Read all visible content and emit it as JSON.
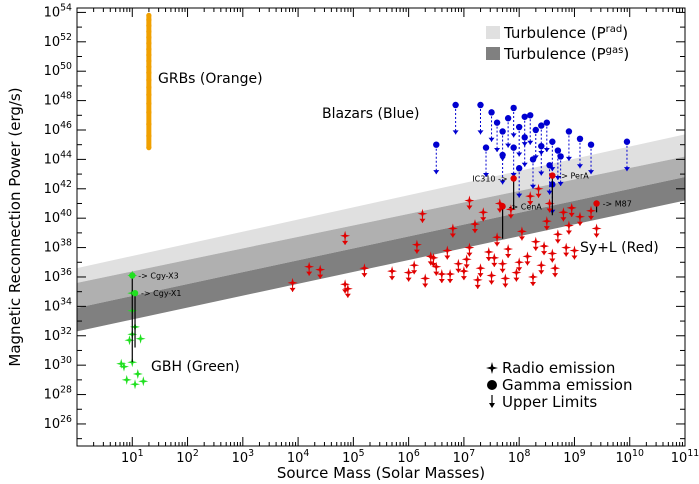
{
  "chart_data": {
    "type": "scatter",
    "xlabel": "Source Mass (Solar Masses)",
    "ylabel": "Magnetic Reconnection Power (erg/s)",
    "x_scale": "log",
    "y_scale": "log",
    "xlim_exp": [
      0,
      11
    ],
    "ylim_exp": [
      24.5,
      54.3
    ],
    "x_ticks": [
      {
        "base": "10",
        "exp": "1",
        "e": 1
      },
      {
        "base": "10",
        "exp": "2",
        "e": 2
      },
      {
        "base": "10",
        "exp": "3",
        "e": 3
      },
      {
        "base": "10",
        "exp": "4",
        "e": 4
      },
      {
        "base": "10",
        "exp": "5",
        "e": 5
      },
      {
        "base": "10",
        "exp": "6",
        "e": 6
      },
      {
        "base": "10",
        "exp": "7",
        "e": 7
      },
      {
        "base": "10",
        "exp": "8",
        "e": 8
      },
      {
        "base": "10",
        "exp": "9",
        "e": 9
      },
      {
        "base": "10",
        "exp": "10",
        "e": 10
      },
      {
        "base": "10",
        "exp": "11",
        "e": 11
      }
    ],
    "y_ticks": [
      {
        "base": "10",
        "exp": "26",
        "e": 26
      },
      {
        "base": "10",
        "exp": "28",
        "e": 28
      },
      {
        "base": "10",
        "exp": "30",
        "e": 30
      },
      {
        "base": "10",
        "exp": "32",
        "e": 32
      },
      {
        "base": "10",
        "exp": "34",
        "e": 34
      },
      {
        "base": "10",
        "exp": "36",
        "e": 36
      },
      {
        "base": "10",
        "exp": "38",
        "e": 38
      },
      {
        "base": "10",
        "exp": "40",
        "e": 40
      },
      {
        "base": "10",
        "exp": "42",
        "e": 42
      },
      {
        "base": "10",
        "exp": "44",
        "e": 44
      },
      {
        "base": "10",
        "exp": "46",
        "e": 46
      },
      {
        "base": "10",
        "exp": "48",
        "e": 48
      },
      {
        "base": "10",
        "exp": "50",
        "e": 50
      },
      {
        "base": "10",
        "exp": "52",
        "e": 52
      },
      {
        "base": "10",
        "exp": "54",
        "e": 54
      }
    ],
    "bands": [
      {
        "name": "Turbulence (P_rad)",
        "label_main": "Turbulence (P",
        "label_sub": "rad",
        "label_end": ")",
        "color": "#e0e0e0",
        "lower": [
          [
            0,
            35.6
          ],
          [
            11,
            44.2
          ]
        ],
        "upper": [
          [
            0,
            36.6
          ],
          [
            11,
            45.7
          ]
        ]
      },
      {
        "name": "Turbulence (P_gas)",
        "label_main": "Turbulence (P",
        "label_sub": "gas",
        "label_end": ")",
        "color": "#808080",
        "lower": [
          [
            0,
            32.3
          ],
          [
            11,
            41.2
          ]
        ],
        "upper": [
          [
            0,
            33.9
          ],
          [
            11,
            42.8
          ]
        ]
      }
    ],
    "mid_band": {
      "color": "#b0b0b0",
      "lower": [
        [
          0,
          33.9
        ],
        [
          11,
          42.8
        ]
      ],
      "upper": [
        [
          0,
          35.6
        ],
        [
          11,
          44.2
        ]
      ]
    },
    "groups": [
      {
        "name": "GRBs",
        "label": "GRBs (Orange)",
        "color": "#f0a000",
        "points": [
          [
            1.3,
            44.8
          ],
          [
            1.3,
            45.6
          ],
          [
            1.3,
            46.4
          ],
          [
            1.3,
            47.2
          ],
          [
            1.3,
            47.8
          ],
          [
            1.3,
            48.4
          ],
          [
            1.3,
            48.9
          ],
          [
            1.3,
            49.4
          ],
          [
            1.3,
            49.9
          ],
          [
            1.3,
            50.3
          ],
          [
            1.3,
            50.7
          ],
          [
            1.3,
            51.1
          ],
          [
            1.3,
            51.5
          ],
          [
            1.3,
            51.9
          ],
          [
            1.3,
            52.3
          ],
          [
            1.3,
            52.7
          ],
          [
            1.3,
            53.1
          ],
          [
            1.3,
            53.5
          ],
          [
            1.3,
            53.8
          ]
        ]
      },
      {
        "name": "Blazars",
        "label": "Blazars (Blue)",
        "color": "#0000d0",
        "points": [
          [
            6.5,
            45.0
          ],
          [
            6.85,
            47.7
          ],
          [
            7.3,
            47.7
          ],
          [
            7.5,
            47.2
          ],
          [
            7.6,
            46.5
          ],
          [
            7.7,
            45.9
          ],
          [
            7.8,
            46.8
          ],
          [
            7.9,
            47.5
          ],
          [
            8.0,
            46.2
          ],
          [
            8.1,
            45.5
          ],
          [
            8.2,
            47.0
          ],
          [
            8.3,
            46.0
          ],
          [
            8.4,
            44.9
          ],
          [
            8.5,
            46.5
          ],
          [
            8.6,
            45.2
          ],
          [
            8.7,
            44.6
          ],
          [
            8.9,
            45.9
          ],
          [
            9.1,
            45.4
          ],
          [
            9.3,
            45.0
          ],
          [
            9.95,
            45.2
          ],
          [
            7.7,
            44.3
          ],
          [
            8.0,
            43.4
          ],
          [
            8.25,
            44.0
          ],
          [
            8.55,
            43.6
          ],
          [
            8.75,
            44.2
          ],
          [
            7.9,
            44.8
          ],
          [
            8.1,
            46.9
          ],
          [
            8.4,
            46.3
          ],
          [
            7.4,
            44.8
          ],
          [
            8.6,
            42.3
          ]
        ],
        "upper_limit_drop": 2.0
      },
      {
        "name": "Sy+L",
        "label": "Sy+L (Red)",
        "color": "#e00000",
        "points": [
          [
            3.9,
            35.6
          ],
          [
            4.2,
            36.7
          ],
          [
            4.4,
            36.5
          ],
          [
            4.85,
            38.8
          ],
          [
            4.85,
            35.5
          ],
          [
            4.9,
            35.2
          ],
          [
            5.2,
            36.6
          ],
          [
            5.7,
            36.4
          ],
          [
            6.1,
            36.8
          ],
          [
            6.15,
            38.2
          ],
          [
            6.25,
            40.3
          ],
          [
            6.4,
            37.4
          ],
          [
            6.5,
            36.7
          ],
          [
            6.6,
            36.2
          ],
          [
            6.7,
            37.8
          ],
          [
            6.8,
            39.3
          ],
          [
            6.9,
            36.9
          ],
          [
            7.0,
            36.4
          ],
          [
            7.1,
            38.0
          ],
          [
            7.2,
            39.6
          ],
          [
            7.3,
            36.6
          ],
          [
            7.35,
            40.4
          ],
          [
            7.45,
            37.7
          ],
          [
            7.5,
            36.1
          ],
          [
            7.6,
            38.7
          ],
          [
            7.7,
            36.9
          ],
          [
            7.8,
            37.9
          ],
          [
            7.85,
            40.6
          ],
          [
            7.95,
            36.3
          ],
          [
            8.05,
            39.1
          ],
          [
            8.15,
            37.4
          ],
          [
            8.2,
            41.5
          ],
          [
            8.3,
            38.4
          ],
          [
            8.4,
            36.8
          ],
          [
            8.5,
            39.8
          ],
          [
            8.55,
            41.0
          ],
          [
            8.6,
            37.6
          ],
          [
            8.7,
            38.9
          ],
          [
            8.8,
            40.4
          ],
          [
            8.9,
            39.5
          ],
          [
            9.0,
            37.8
          ],
          [
            9.1,
            40.1
          ],
          [
            9.3,
            40.5
          ],
          [
            9.4,
            39.3
          ],
          [
            6.0,
            36.3
          ],
          [
            6.3,
            35.9
          ],
          [
            6.45,
            37.3
          ],
          [
            6.75,
            36.2
          ],
          [
            7.05,
            37.2
          ],
          [
            7.25,
            35.8
          ],
          [
            7.55,
            37.3
          ],
          [
            7.75,
            35.9
          ],
          [
            8.0,
            37.0
          ],
          [
            8.25,
            36.0
          ],
          [
            8.45,
            38.1
          ],
          [
            8.65,
            36.6
          ],
          [
            8.85,
            38.0
          ],
          [
            7.1,
            41.2
          ],
          [
            7.65,
            41.0
          ],
          [
            8.35,
            42.0
          ],
          [
            8.95,
            40.7
          ]
        ]
      },
      {
        "name": "GBH",
        "label": "GBH (Green)",
        "color": "#20e020",
        "points": [
          [
            1.0,
            36.1
          ],
          [
            1.0,
            34.9
          ],
          [
            1.0,
            33.7
          ],
          [
            1.0,
            32.1
          ],
          [
            1.05,
            32.6
          ],
          [
            0.95,
            31.7
          ],
          [
            1.15,
            31.8
          ],
          [
            0.85,
            29.9
          ],
          [
            1.0,
            30.2
          ],
          [
            1.1,
            29.4
          ],
          [
            0.9,
            29.0
          ],
          [
            1.05,
            28.7
          ],
          [
            1.2,
            28.9
          ],
          [
            0.8,
            30.1
          ]
        ]
      }
    ],
    "named_sources": [
      {
        "name": "Cgy-X3",
        "label": "-> Cgy-X3",
        "x": 1.0,
        "y": 36.1,
        "y_low": 30.2
      },
      {
        "name": "Cgy-X1",
        "label": "-> Cgy-X1",
        "x": 1.05,
        "y": 34.9,
        "y_low": 31.2
      },
      {
        "name": "IC310",
        "label": "IC310 ->",
        "x": 7.9,
        "y": 42.7,
        "y_low": 40.6
      },
      {
        "name": "PerA",
        "label": "-> PerA",
        "x": 8.6,
        "y": 42.9,
        "y_low": 40.2
      },
      {
        "name": "CenA",
        "label": "-> CenA",
        "x": 7.7,
        "y": 40.8,
        "y_low": 38.6
      },
      {
        "name": "M87",
        "label": "-> M87",
        "x": 9.4,
        "y": 41.0,
        "y_low": 40.4
      }
    ],
    "legend": {
      "placement": "bottom-right",
      "items": [
        {
          "symbol": "star-icon",
          "label": "Radio emission"
        },
        {
          "symbol": "circle-icon",
          "label": "Gamma emission"
        },
        {
          "symbol": "down-arrow-icon",
          "label": "Upper Limits"
        }
      ]
    }
  }
}
